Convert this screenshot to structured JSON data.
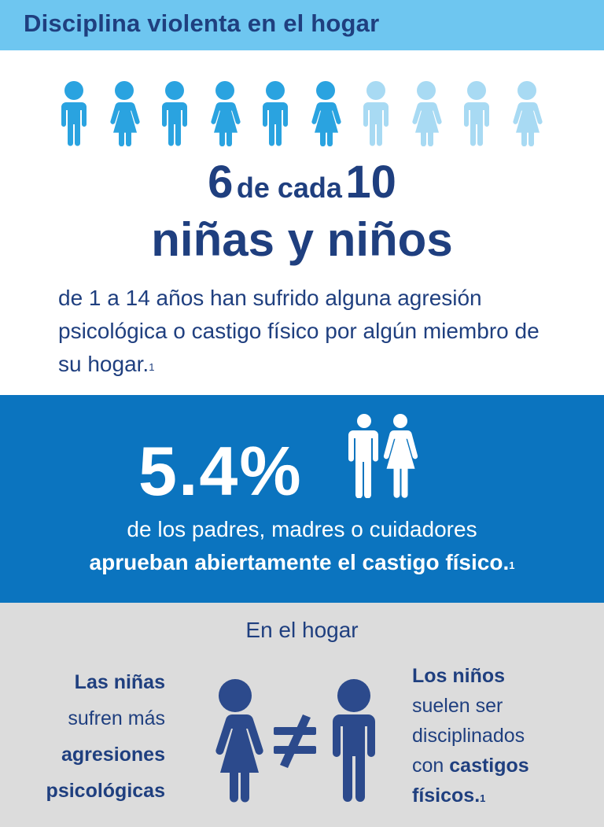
{
  "header": {
    "title": "Disciplina violenta en el hogar"
  },
  "colors": {
    "header_bg": "#6ec6f0",
    "dark_blue": "#1f3f7f",
    "figure_dark": "#2aa3e0",
    "figure_light": "#a8daf3",
    "mid_blue_bg": "#0b74bf",
    "gray_bg": "#dcdcdc",
    "compare_figure": "#2c4a8c"
  },
  "stat1": {
    "num": "6",
    "mid": "de cada",
    "den": "10",
    "subject": "niñas y niños",
    "figures_total": 10,
    "figures_highlighted": 6,
    "description": "de 1 a 14 años han sufrido alguna agresión psicológica o castigo físico por algún miembro de su hogar.",
    "footnote": "1"
  },
  "stat2": {
    "percent": "5.4%",
    "line1": "de los padres, madres o cuidadores",
    "line2_bold": "aprueban abiertamente el castigo físico.",
    "footnote": "1",
    "icon": "parents-icon"
  },
  "hogar": {
    "title": "En el hogar",
    "girls": {
      "line1_bold": "Las niñas",
      "line2": "sufren más",
      "line3_bold": "agresiones",
      "line4_bold": "psicológicas"
    },
    "boys": {
      "line1_bold": "Los niños",
      "line2": "suelen ser",
      "line3": "disciplinados",
      "line4_pre": "con ",
      "line4_bold": "castigos",
      "line5_bold": "físicos.",
      "footnote": "1"
    },
    "compare_icon": "girl-not-equal-boy-icon"
  }
}
